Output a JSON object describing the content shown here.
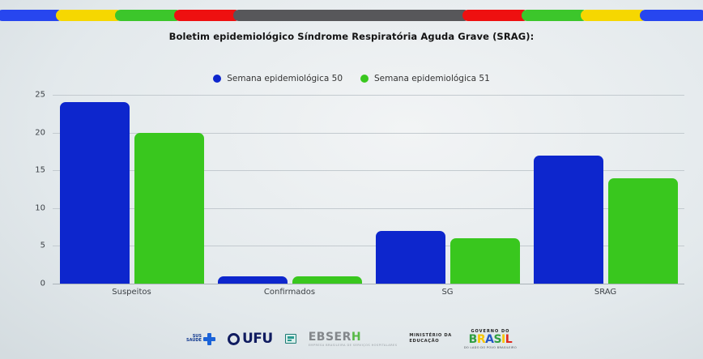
{
  "title": "Boletim epidemiológico Síndrome Respiratória Aguda Grave (SRAG):",
  "top_strip": {
    "segments": [
      "#2746ef",
      "#f6d701",
      "#3cc62b",
      "#ee1010",
      "#57575a",
      "#ee1010",
      "#3cc62b",
      "#f6d701",
      "#2746ef"
    ]
  },
  "legend": {
    "items": [
      {
        "label": "Semana epidemiológica 50",
        "color": "#0d26cd"
      },
      {
        "label": "Semana epidemiológica 51",
        "color": "#39c71e"
      }
    ]
  },
  "chart_data": {
    "type": "bar",
    "title": "Boletim epidemiológico Síndrome Respiratória Aguda Grave (SRAG):",
    "categories": [
      "Suspeitos",
      "Confirmados",
      "SG",
      "SRAG"
    ],
    "series": [
      {
        "name": "Semana epidemiológica 50",
        "color": "#0d26cd",
        "values": [
          24,
          1,
          7,
          17
        ]
      },
      {
        "name": "Semana epidemiológica 51",
        "color": "#39c71e",
        "values": [
          20,
          1,
          6,
          14
        ]
      }
    ],
    "xlabel": "",
    "ylabel": "",
    "ylim": [
      0,
      25
    ],
    "yticks": [
      0,
      5,
      10,
      15,
      20,
      25
    ],
    "grid": true,
    "legend_position": "top"
  },
  "footer": {
    "sus": {
      "line1": "SUS",
      "line2": "SAÚDE"
    },
    "ufu": {
      "text": "UFU"
    },
    "ebserh": {
      "text_gray": "EBSER",
      "text_green": "H",
      "subtext": "EMPRESA BRASILEIRA DE SERVIÇOS HOSPITALARES"
    },
    "mec": {
      "line1": "MINISTÉRIO DA",
      "line2": "EDUCAÇÃO"
    },
    "govbr": {
      "top": "GOVERNO DO",
      "letters": [
        {
          "ch": "B",
          "color": "#2f9e41"
        },
        {
          "ch": "R",
          "color": "#f7c600"
        },
        {
          "ch": "A",
          "color": "#2456c4"
        },
        {
          "ch": "S",
          "color": "#2f9e41"
        },
        {
          "ch": "I",
          "color": "#f7c600"
        },
        {
          "ch": "L",
          "color": "#e02a1e"
        }
      ],
      "tagline": "DO LADO DO POVO BRASILEIRO"
    }
  }
}
